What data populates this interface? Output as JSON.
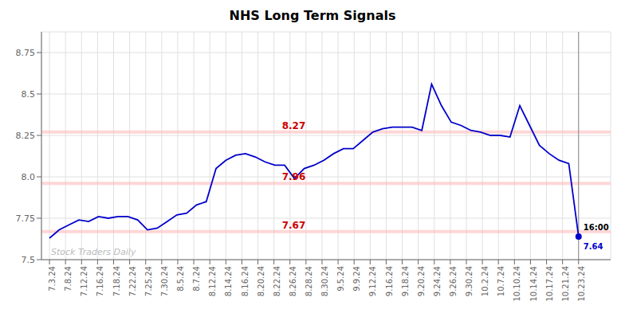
{
  "chart_data": {
    "type": "line",
    "title": "NHS Long Term Signals",
    "watermark": "Stock Traders Daily",
    "color": "#0000cc",
    "grid": true,
    "x": [
      0,
      0.6111111111,
      1.2222222222,
      1.8333333333,
      2.4444444444,
      3.0555555556,
      3.6666666667,
      4.2777777778,
      4.8888888889,
      5.5,
      6.1111111111,
      6.7222222222,
      7.3333333333,
      7.9444444444,
      8.5555555556,
      9.1666666667,
      9.7777777778,
      10.3888888889,
      11,
      11.6111111111,
      12.2222222222,
      12.8333333333,
      13.4444444444,
      14.0555555556,
      14.6666666667,
      15.2777777778,
      15.8888888889,
      16.5,
      17.1111111111,
      17.7222222222,
      18.3333333333,
      18.9444444444,
      19.5555555556,
      20.1666666667,
      20.7777777778,
      21.3888888889,
      22,
      22.6111111111,
      23.2222222222,
      23.8333333333,
      24.4444444444,
      25.0555555556,
      25.6666666667,
      26.2777777778,
      26.8888888889,
      27.5,
      28.1111111111,
      28.7222222222,
      29.3333333333,
      29.9444444444,
      30.5555555556,
      31.1666666667,
      31.7777777778,
      32.3888888889,
      33
    ],
    "values": [
      7.63,
      7.68,
      7.71,
      7.74,
      7.73,
      7.76,
      7.75,
      7.76,
      7.76,
      7.74,
      7.68,
      7.69,
      7.73,
      7.77,
      7.78,
      7.83,
      7.85,
      8.05,
      8.1,
      8.13,
      8.14,
      8.12,
      8.09,
      8.07,
      8.07,
      7.99,
      8.05,
      8.07,
      8.1,
      8.14,
      8.17,
      8.17,
      8.22,
      8.27,
      8.29,
      8.3,
      8.3,
      8.3,
      8.28,
      8.56,
      8.43,
      8.33,
      8.31,
      8.28,
      8.27,
      8.25,
      8.25,
      8.24,
      8.43,
      8.31,
      8.19,
      8.14,
      8.1,
      8.08,
      7.64
    ],
    "xlim": [
      -0.5,
      35
    ],
    "xticks": [
      {
        "value": 0,
        "label": "7.3.24"
      },
      {
        "value": 1,
        "label": "7.8.24"
      },
      {
        "value": 2,
        "label": "7.12.24"
      },
      {
        "value": 3,
        "label": "7.16.24"
      },
      {
        "value": 4,
        "label": "7.18.24"
      },
      {
        "value": 5,
        "label": "7.22.24"
      },
      {
        "value": 6,
        "label": "7.25.24"
      },
      {
        "value": 7,
        "label": "7.30.24"
      },
      {
        "value": 8,
        "label": "8.5.24"
      },
      {
        "value": 9,
        "label": "8.7.24"
      },
      {
        "value": 10,
        "label": "8.12.24"
      },
      {
        "value": 11,
        "label": "8.14.24"
      },
      {
        "value": 12,
        "label": "8.16.24"
      },
      {
        "value": 13,
        "label": "8.20.24"
      },
      {
        "value": 14,
        "label": "8.22.24"
      },
      {
        "value": 15,
        "label": "8.26.24"
      },
      {
        "value": 16,
        "label": "8.28.24"
      },
      {
        "value": 17,
        "label": "8.30.24"
      },
      {
        "value": 18,
        "label": "9.5.24"
      },
      {
        "value": 19,
        "label": "9.9.24"
      },
      {
        "value": 20,
        "label": "9.12.24"
      },
      {
        "value": 21,
        "label": "9.16.24"
      },
      {
        "value": 22,
        "label": "9.18.24"
      },
      {
        "value": 23,
        "label": "9.20.24"
      },
      {
        "value": 24,
        "label": "9.24.24"
      },
      {
        "value": 25,
        "label": "9.26.24"
      },
      {
        "value": 26,
        "label": "9.30.24"
      },
      {
        "value": 27,
        "label": "10.2.24"
      },
      {
        "value": 28,
        "label": "10.7.24"
      },
      {
        "value": 29,
        "label": "10.10.24"
      },
      {
        "value": 30,
        "label": "10.14.24"
      },
      {
        "value": 31,
        "label": "10.17.24"
      },
      {
        "value": 32,
        "label": "10.21.24"
      },
      {
        "value": 33,
        "label": "10.23.24"
      }
    ],
    "ylim": [
      7.5,
      8.875
    ],
    "yticks": [
      7.5,
      7.75,
      {
        "value": 8,
        "label": "8.0"
      },
      8.25,
      8.5,
      8.75
    ],
    "hlines": [
      {
        "y": 8.27,
        "label": "8.27",
        "color": "#cc0000",
        "band_color": "#ffbbbb"
      },
      {
        "y": 7.96,
        "label": "7.96",
        "color": "#cc0000",
        "band_color": "#ffbbbb"
      },
      {
        "y": 7.67,
        "label": "7.67",
        "color": "#cc0000",
        "band_color": "#ffbbbb"
      }
    ],
    "last_point": {
      "label": "16:00",
      "value_label": "7.64",
      "value_color": "#0000cc",
      "marker": "circle"
    }
  }
}
